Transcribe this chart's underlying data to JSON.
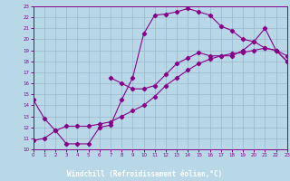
{
  "xlabel": "Windchill (Refroidissement éolien,°C)",
  "xlim": [
    0,
    23
  ],
  "ylim": [
    10,
    23
  ],
  "xticks": [
    0,
    1,
    2,
    3,
    4,
    5,
    6,
    7,
    8,
    9,
    10,
    11,
    12,
    13,
    14,
    15,
    16,
    17,
    18,
    19,
    20,
    21,
    22,
    23
  ],
  "yticks": [
    10,
    11,
    12,
    13,
    14,
    15,
    16,
    17,
    18,
    19,
    20,
    21,
    22,
    23
  ],
  "bg_color": "#b8d8e8",
  "grid_color": "#9ab8cc",
  "line_color": "#880088",
  "xlabel_bg": "#6600aa",
  "line1_x": [
    0,
    1,
    2,
    3,
    4,
    5,
    6,
    7,
    8,
    9,
    10,
    11,
    12,
    13,
    14,
    15,
    16,
    17,
    18,
    19,
    20,
    21,
    22,
    23
  ],
  "line1_y": [
    14.5,
    12.8,
    11.7,
    10.5,
    10.5,
    10.5,
    12.0,
    12.2,
    14.5,
    16.5,
    20.5,
    22.2,
    22.3,
    22.5,
    22.8,
    22.5,
    22.2,
    21.2,
    20.8,
    20.0,
    19.8,
    21.0,
    19.0,
    18.0
  ],
  "line2_x": [
    0,
    1,
    2,
    3,
    4,
    5,
    6,
    7,
    8,
    9,
    10,
    11,
    12,
    13,
    14,
    15,
    16,
    17,
    18,
    19,
    20,
    21,
    22,
    23
  ],
  "line2_y": [
    10.8,
    11.0,
    11.7,
    12.1,
    12.1,
    12.1,
    12.3,
    12.5,
    13.0,
    13.5,
    14.0,
    14.8,
    15.8,
    16.5,
    17.2,
    17.8,
    18.2,
    18.5,
    18.7,
    18.8,
    19.0,
    19.2,
    19.0,
    18.0
  ],
  "line3_x": [
    7,
    8,
    9,
    10,
    11,
    12,
    13,
    14,
    15,
    16,
    17,
    18,
    19,
    20,
    21,
    22,
    23
  ],
  "line3_y": [
    16.5,
    16.0,
    15.5,
    15.5,
    15.8,
    16.8,
    17.8,
    18.3,
    18.8,
    18.5,
    18.5,
    18.5,
    19.0,
    19.8,
    19.2,
    19.0,
    18.5
  ]
}
